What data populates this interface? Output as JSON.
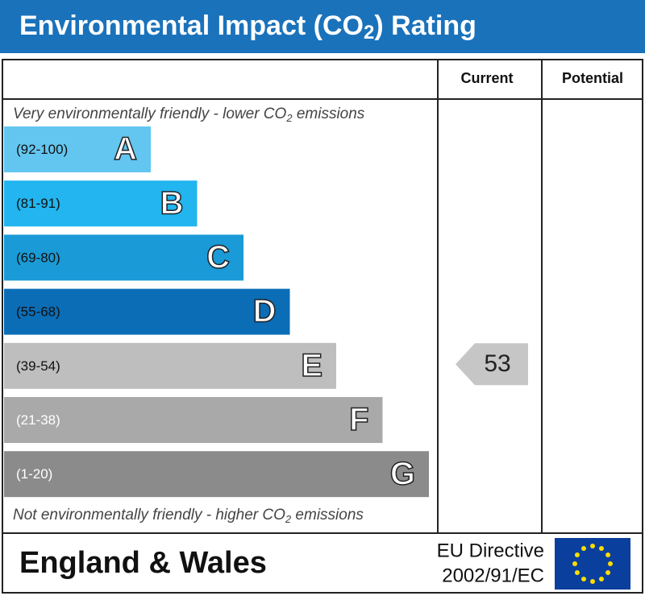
{
  "header": {
    "title_start": "Environmental Impact (CO",
    "title_sub": "2",
    "title_end": ") Rating"
  },
  "columns": {
    "current": "Current",
    "potential": "Potential"
  },
  "top_note": {
    "start": "Very environmentally friendly - lower CO",
    "sub": "2",
    "end": " emissions"
  },
  "bottom_note": {
    "start": "Not environmentally friendly - higher CO",
    "sub": "2",
    "end": " emissions"
  },
  "bands": [
    {
      "range": "(92-100)",
      "letter": "A",
      "color": "#63c6f0"
    },
    {
      "range": "(81-91)",
      "letter": "B",
      "color": "#22b5ef"
    },
    {
      "range": "(69-80)",
      "letter": "C",
      "color": "#1a9ad6"
    },
    {
      "range": "(55-68)",
      "letter": "D",
      "color": "#0b6db6"
    },
    {
      "range": "(39-54)",
      "letter": "E",
      "color": "#bebebe"
    },
    {
      "range": "(21-38)",
      "letter": "F",
      "color": "#a9a9a9"
    },
    {
      "range": "(1-20)",
      "letter": "G",
      "color": "#8b8b8b"
    }
  ],
  "current": {
    "value": 53
  },
  "footer": {
    "region": "England & Wales",
    "directive_line1": "EU Directive",
    "directive_line2": "2002/91/EC"
  }
}
